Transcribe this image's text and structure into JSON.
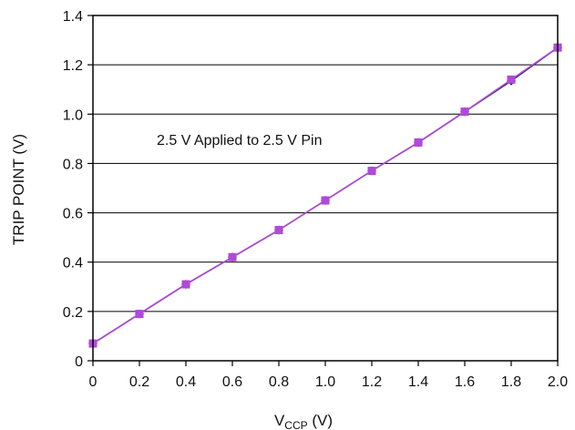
{
  "chart_data": {
    "type": "line",
    "annotation": "2.5 V Applied to 2.5 V Pin",
    "xlabel": {
      "main": "V",
      "sub": "CCP",
      "unit": " (V)"
    },
    "ylabel": "TRIP POINT (V)",
    "xlim": [
      0,
      2.0
    ],
    "ylim": [
      0,
      1.4
    ],
    "x_ticks": [
      "0",
      "0.2",
      "0.4",
      "0.6",
      "0.8",
      "1.0",
      "1.2",
      "1.4",
      "1.6",
      "1.8",
      "2.0"
    ],
    "y_ticks": [
      "0",
      "0.2",
      "0.4",
      "0.6",
      "0.8",
      "1.0",
      "1.2",
      "1.4"
    ],
    "grid": "horizontal",
    "x": [
      0,
      0.2,
      0.4,
      0.6,
      0.8,
      1.0,
      1.2,
      1.4,
      1.6,
      1.8,
      2.0
    ],
    "series": [
      {
        "values": [
          0.07,
          0.19,
          0.31,
          0.42,
          0.53,
          0.65,
          0.77,
          0.885,
          1.01,
          1.135,
          1.27
        ],
        "color": "#1a1a66",
        "marker": "diamond"
      },
      {
        "values": [
          0.07,
          0.19,
          0.31,
          0.42,
          0.53,
          0.65,
          0.77,
          0.885,
          1.01,
          1.14,
          1.27
        ],
        "color": "#b04ad8",
        "marker": "square"
      }
    ]
  }
}
